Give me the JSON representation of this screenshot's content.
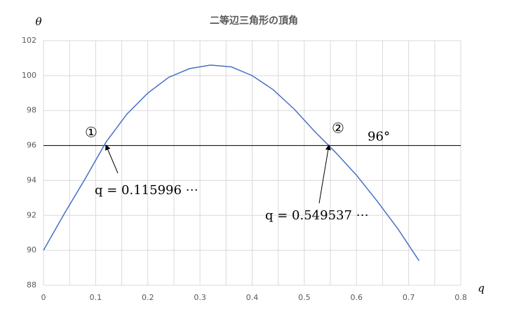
{
  "chart_data": {
    "type": "line",
    "title": "二等辺三角形の頂角",
    "y_label": "θ",
    "x_label": "q",
    "x": [
      0,
      0.04,
      0.08,
      0.12,
      0.16,
      0.2,
      0.24,
      0.28,
      0.32,
      0.36,
      0.4,
      0.44,
      0.48,
      0.52,
      0.56,
      0.6,
      0.64,
      0.68,
      0.72
    ],
    "series": [
      {
        "color": "#4472c4",
        "values": [
          90,
          92.1,
          94.1,
          96.2,
          97.8,
          99.0,
          99.9,
          100.4,
          100.6,
          100.5,
          100.0,
          99.2,
          98.1,
          96.8,
          95.6,
          94.3,
          92.8,
          91.2,
          89.4
        ]
      }
    ],
    "xlim": [
      0,
      0.8
    ],
    "xticks": [
      0,
      0.1,
      0.2,
      0.3,
      0.4,
      0.5,
      0.6,
      0.7,
      0.8
    ],
    "x_minor_gridlines": [
      0.05,
      0.15,
      0.25,
      0.35,
      0.45,
      0.55,
      0.65,
      0.75
    ],
    "ylim": [
      88,
      102
    ],
    "yticks": [
      88,
      90,
      92,
      94,
      96,
      98,
      100,
      102
    ],
    "grid": true,
    "reference_line": {
      "value": 96,
      "label": "96°",
      "color": "#000000"
    },
    "annotations": [
      {
        "marker": "①",
        "text": "q = 0.115996 ⋯"
      },
      {
        "marker": "②",
        "text": "q = 0.549537 ⋯"
      }
    ]
  }
}
